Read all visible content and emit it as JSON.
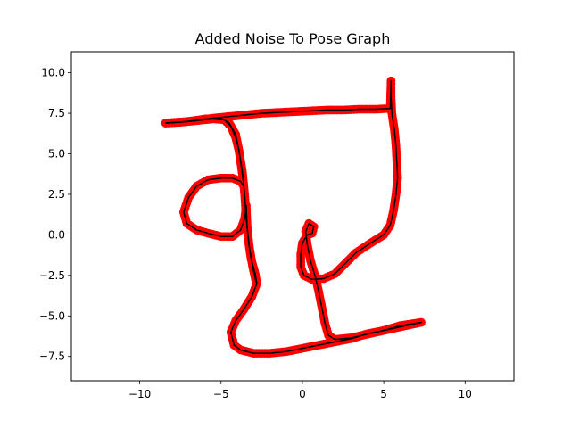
{
  "chart_data": {
    "type": "scatter",
    "title": "Added Noise To Pose Graph",
    "xlabel": "",
    "ylabel": "",
    "xlim": [
      -14.2,
      13
    ],
    "ylim": [
      -9.0,
      11.3
    ],
    "x_ticks": [
      -10,
      -5,
      0,
      5,
      10
    ],
    "x_tick_labels": [
      "−10",
      "−5",
      "0",
      "5",
      "10"
    ],
    "y_ticks": [
      -7.5,
      -5.0,
      -2.5,
      0.0,
      2.5,
      5.0,
      7.5,
      10.0
    ],
    "y_tick_labels": [
      "−7.5",
      "−5.0",
      "−2.5",
      "0.0",
      "2.5",
      "5.0",
      "7.5",
      "10.0"
    ],
    "grid": false,
    "legend": "none",
    "marker_color": "#ff0000",
    "edge_color": "#000000",
    "trajectory": [
      [
        -8.4,
        6.9
      ],
      [
        -7.0,
        7.0
      ],
      [
        -6.0,
        7.15
      ],
      [
        -5.0,
        7.2
      ],
      [
        -4.5,
        6.9
      ],
      [
        -4.1,
        6.2
      ],
      [
        -3.9,
        5.2
      ],
      [
        -3.7,
        4.0
      ],
      [
        -3.55,
        2.5
      ],
      [
        -3.45,
        1.0
      ],
      [
        -3.3,
        -0.5
      ],
      [
        -3.15,
        -1.5
      ],
      [
        -2.9,
        -2.4
      ],
      [
        -2.8,
        -3.0
      ],
      [
        -3.1,
        -3.8
      ],
      [
        -3.6,
        -4.6
      ],
      [
        -4.1,
        -5.3
      ],
      [
        -4.4,
        -6.0
      ],
      [
        -4.2,
        -6.8
      ],
      [
        -3.8,
        -7.1
      ],
      [
        -3.0,
        -7.3
      ],
      [
        -2.0,
        -7.3
      ],
      [
        -1.0,
        -7.2
      ],
      [
        0.0,
        -7.0
      ],
      [
        1.0,
        -6.8
      ],
      [
        2.0,
        -6.6
      ],
      [
        3.0,
        -6.4
      ],
      [
        4.0,
        -6.1
      ],
      [
        5.0,
        -5.9
      ],
      [
        6.0,
        -5.6
      ],
      [
        7.3,
        -5.4
      ],
      [
        5.0,
        -5.9
      ],
      [
        3.0,
        -6.35
      ],
      [
        2.0,
        -6.45
      ],
      [
        1.6,
        -6.2
      ],
      [
        1.4,
        -5.5
      ],
      [
        1.2,
        -4.5
      ],
      [
        1.0,
        -3.5
      ],
      [
        0.8,
        -2.6
      ],
      [
        0.5,
        -1.6
      ],
      [
        0.3,
        -0.6
      ],
      [
        0.2,
        0.2
      ],
      [
        0.4,
        0.7
      ],
      [
        0.7,
        0.5
      ],
      [
        0.6,
        0.1
      ],
      [
        0.3,
        0.0
      ],
      [
        0.0,
        -0.5
      ],
      [
        -0.1,
        -1.2
      ],
      [
        -0.1,
        -2.0
      ],
      [
        0.1,
        -2.5
      ],
      [
        0.6,
        -2.75
      ],
      [
        1.3,
        -2.7
      ],
      [
        2.0,
        -2.4
      ],
      [
        2.6,
        -1.8
      ],
      [
        3.3,
        -1.1
      ],
      [
        4.2,
        -0.5
      ],
      [
        5.0,
        0.0
      ],
      [
        5.4,
        0.6
      ],
      [
        5.6,
        1.5
      ],
      [
        5.75,
        2.5
      ],
      [
        5.85,
        3.5
      ],
      [
        5.8,
        4.5
      ],
      [
        5.75,
        5.5
      ],
      [
        5.65,
        6.5
      ],
      [
        5.5,
        7.5
      ],
      [
        5.45,
        8.5
      ],
      [
        5.45,
        9.5
      ],
      [
        5.4,
        7.8
      ],
      [
        4.5,
        7.75
      ],
      [
        3.5,
        7.75
      ],
      [
        2.5,
        7.7
      ],
      [
        1.5,
        7.7
      ],
      [
        0.5,
        7.65
      ],
      [
        -0.5,
        7.6
      ],
      [
        -1.5,
        7.55
      ],
      [
        -2.5,
        7.5
      ],
      [
        -3.5,
        7.4
      ],
      [
        -4.5,
        7.3
      ],
      [
        -5.5,
        7.2
      ],
      [
        -6.5,
        7.05
      ],
      [
        -7.5,
        6.95
      ],
      [
        -8.4,
        6.9
      ],
      [
        -7.5,
        6.95
      ],
      [
        -6.5,
        7.05
      ],
      [
        -5.5,
        7.15
      ],
      [
        -4.8,
        7.1
      ],
      [
        -4.4,
        6.7
      ],
      [
        -4.1,
        6.0
      ],
      [
        -3.9,
        5.2
      ],
      [
        -3.75,
        4.2
      ],
      [
        -3.6,
        3.0
      ],
      [
        -3.8,
        3.3
      ],
      [
        -4.3,
        3.5
      ],
      [
        -5.0,
        3.5
      ],
      [
        -5.8,
        3.4
      ],
      [
        -6.5,
        3.0
      ],
      [
        -7.0,
        2.3
      ],
      [
        -7.3,
        1.4
      ],
      [
        -7.1,
        0.7
      ],
      [
        -6.5,
        0.3
      ],
      [
        -5.8,
        0.1
      ],
      [
        -5.0,
        -0.1
      ],
      [
        -4.3,
        -0.1
      ],
      [
        -3.8,
        0.3
      ],
      [
        -3.55,
        1.0
      ],
      [
        -3.45,
        1.8
      ],
      [
        -3.4,
        0.5
      ],
      [
        -3.25,
        -0.8
      ],
      [
        -3.05,
        -2.0
      ],
      [
        -2.85,
        -2.9
      ]
    ]
  }
}
